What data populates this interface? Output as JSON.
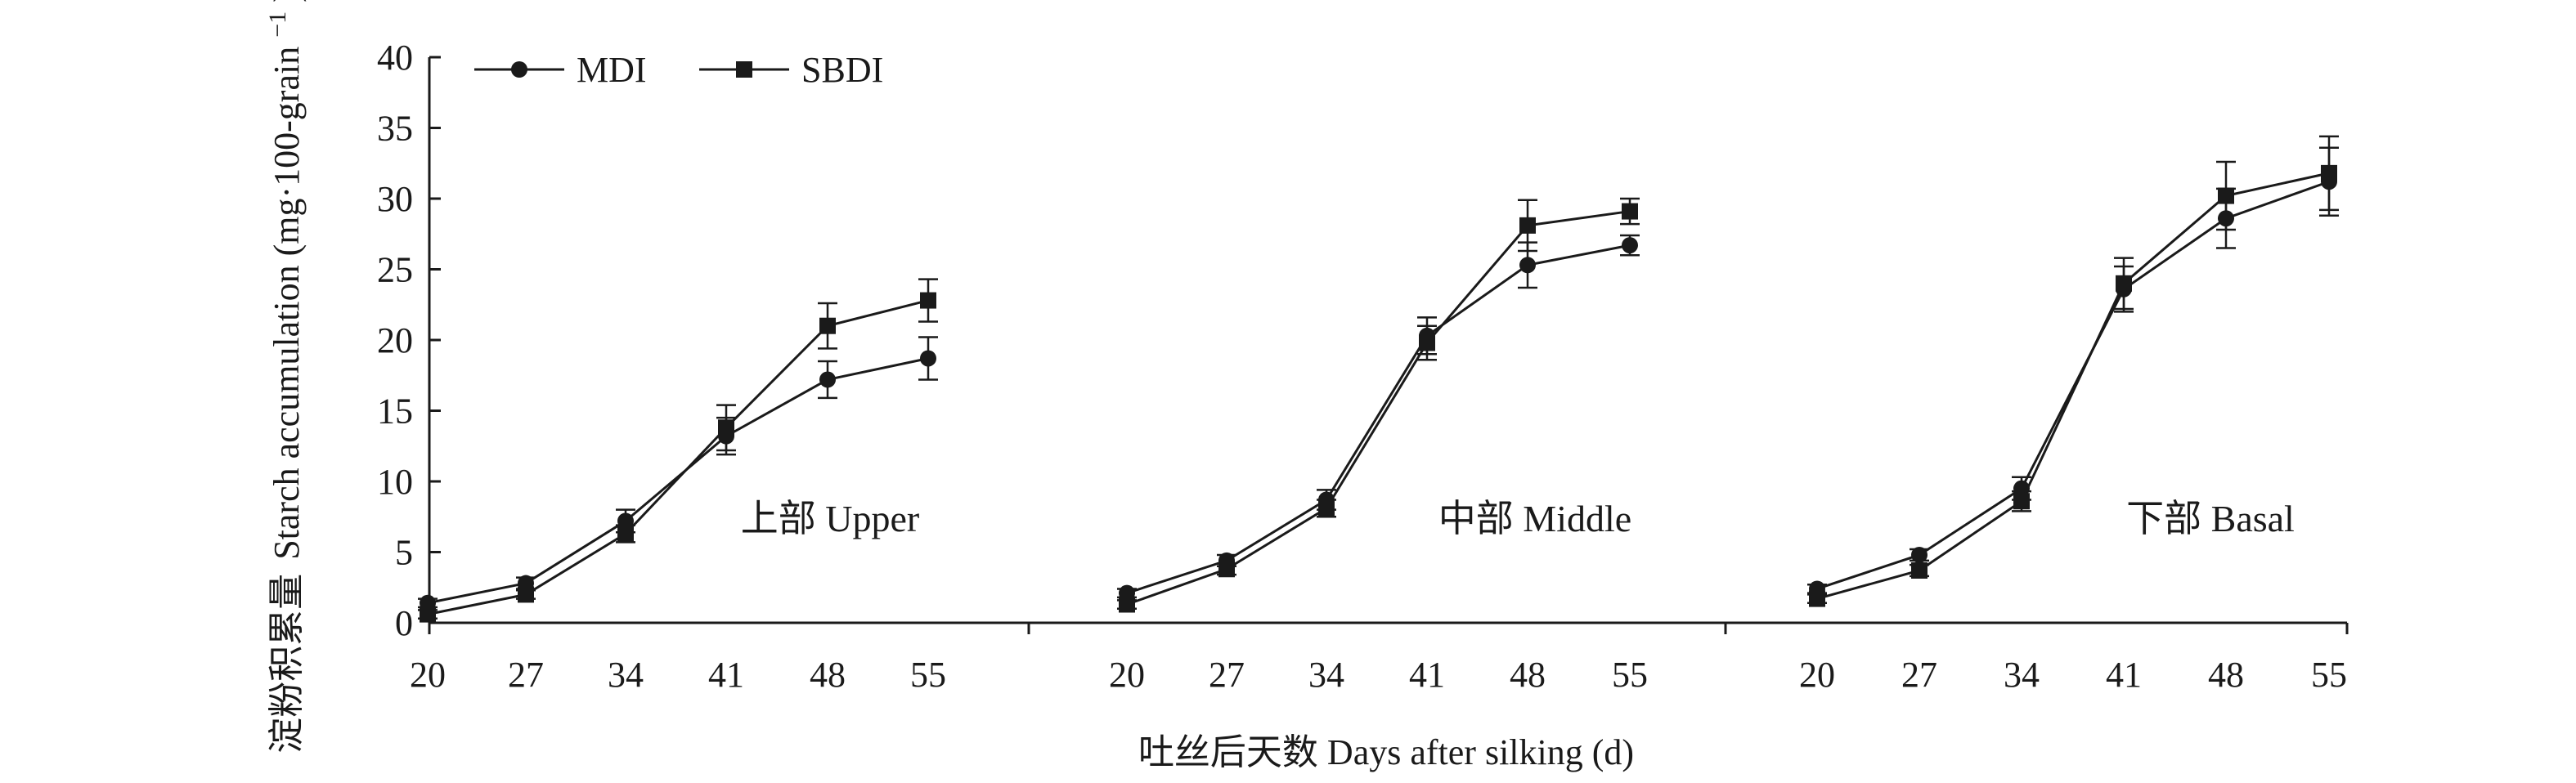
{
  "chart_data": {
    "type": "line",
    "ylabel_cn": "淀粉积累量",
    "ylabel_en": "Starch accumulation (mg·100-grain",
    "ylabel_sup": "−1",
    "ylabel_close": ")",
    "xlabel": "吐丝后天数 Days after silking (d)",
    "ylim": [
      0,
      40
    ],
    "yticks": [
      "0",
      "5",
      "10",
      "15",
      "20",
      "25",
      "30",
      "35",
      "40"
    ],
    "x_categories": [
      "20",
      "27",
      "34",
      "41",
      "48",
      "55"
    ],
    "legend_position": "top-left",
    "legend": [
      {
        "name": "MDI",
        "marker": "circle"
      },
      {
        "name": "SBDI",
        "marker": "square"
      }
    ],
    "panels": [
      {
        "label": "上部 Upper",
        "series": [
          {
            "name": "MDI",
            "values": [
              1.4,
              2.8,
              7.2,
              13.2,
              17.2,
              18.7
            ],
            "errors": [
              0.3,
              0.4,
              0.8,
              1.3,
              1.3,
              1.5
            ]
          },
          {
            "name": "SBDI",
            "values": [
              0.6,
              2.0,
              6.3,
              13.8,
              21.0,
              22.8
            ],
            "errors": [
              0.3,
              0.3,
              0.6,
              1.6,
              1.6,
              1.5
            ]
          }
        ]
      },
      {
        "label": "中部 Middle",
        "series": [
          {
            "name": "MDI",
            "values": [
              2.1,
              4.4,
              8.7,
              20.3,
              25.3,
              26.7
            ],
            "errors": [
              0.3,
              0.4,
              0.7,
              1.3,
              1.6,
              0.7
            ]
          },
          {
            "name": "SBDI",
            "values": [
              1.3,
              3.8,
              8.1,
              19.8,
              28.1,
              29.1
            ],
            "errors": [
              0.3,
              0.4,
              0.6,
              1.2,
              1.8,
              0.9
            ]
          }
        ]
      },
      {
        "label": "下部 Basal",
        "series": [
          {
            "name": "MDI",
            "values": [
              2.4,
              4.8,
              9.5,
              23.6,
              28.6,
              31.2
            ],
            "errors": [
              0.3,
              0.4,
              0.8,
              1.6,
              2.1,
              2.4
            ]
          },
          {
            "name": "SBDI",
            "values": [
              1.7,
              3.7,
              8.6,
              24.0,
              30.2,
              31.8
            ],
            "errors": [
              0.3,
              0.4,
              0.7,
              1.8,
              2.4,
              2.6
            ]
          }
        ]
      }
    ]
  }
}
